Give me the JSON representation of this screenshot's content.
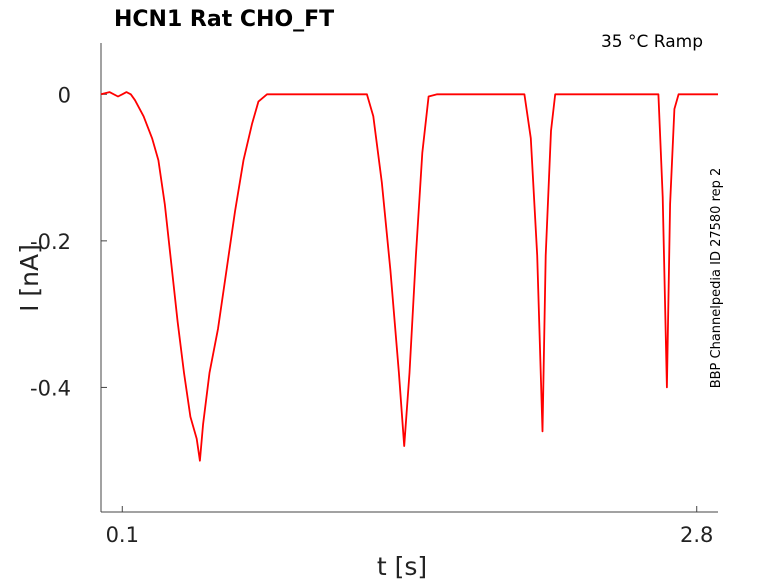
{
  "chart_data": {
    "type": "line",
    "title": "HCN1  Rat  CHO_FT",
    "annotation": "35 °C  Ramp",
    "side_label": "BBP Channelpedia ID 27580 rep 2",
    "xlabel": "t [s]",
    "ylabel": "I [nA]",
    "xlim": [
      0.0,
      2.9
    ],
    "ylim": [
      -0.57,
      0.07
    ],
    "xticks": [
      0.1,
      2.8
    ],
    "xtick_labels": [
      "0.1",
      "2.8"
    ],
    "yticks": [
      0,
      -0.2,
      -0.4
    ],
    "ytick_labels": [
      "0",
      "-0.2",
      "-0.4"
    ],
    "grid": false,
    "series": [
      {
        "color": "#ff0000",
        "points": [
          [
            0.0,
            0.0
          ],
          [
            0.04,
            0.003
          ],
          [
            0.08,
            -0.003
          ],
          [
            0.1,
            0.0
          ],
          [
            0.12,
            0.003
          ],
          [
            0.14,
            0.0
          ],
          [
            0.16,
            -0.008
          ],
          [
            0.2,
            -0.03
          ],
          [
            0.24,
            -0.06
          ],
          [
            0.27,
            -0.09
          ],
          [
            0.3,
            -0.15
          ],
          [
            0.33,
            -0.23
          ],
          [
            0.36,
            -0.31
          ],
          [
            0.39,
            -0.38
          ],
          [
            0.42,
            -0.44
          ],
          [
            0.45,
            -0.47
          ],
          [
            0.465,
            -0.5
          ],
          [
            0.48,
            -0.45
          ],
          [
            0.51,
            -0.38
          ],
          [
            0.55,
            -0.32
          ],
          [
            0.59,
            -0.24
          ],
          [
            0.63,
            -0.16
          ],
          [
            0.67,
            -0.09
          ],
          [
            0.71,
            -0.04
          ],
          [
            0.74,
            -0.01
          ],
          [
            0.78,
            0.0
          ],
          [
            1.25,
            0.0
          ],
          [
            1.28,
            -0.03
          ],
          [
            1.32,
            -0.12
          ],
          [
            1.36,
            -0.24
          ],
          [
            1.4,
            -0.38
          ],
          [
            1.425,
            -0.48
          ],
          [
            1.45,
            -0.38
          ],
          [
            1.48,
            -0.22
          ],
          [
            1.51,
            -0.08
          ],
          [
            1.54,
            -0.003
          ],
          [
            1.58,
            0.0
          ],
          [
            1.99,
            0.0
          ],
          [
            2.02,
            -0.06
          ],
          [
            2.05,
            -0.22
          ],
          [
            2.075,
            -0.46
          ],
          [
            2.09,
            -0.22
          ],
          [
            2.115,
            -0.05
          ],
          [
            2.135,
            0.0
          ],
          [
            2.62,
            0.0
          ],
          [
            2.64,
            -0.14
          ],
          [
            2.66,
            -0.4
          ],
          [
            2.675,
            -0.15
          ],
          [
            2.695,
            -0.02
          ],
          [
            2.715,
            0.0
          ],
          [
            2.9,
            0.0
          ]
        ]
      }
    ]
  }
}
